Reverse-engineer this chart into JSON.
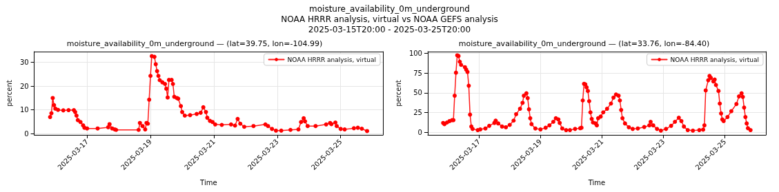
{
  "chart_data": [
    {
      "type": "line",
      "title": "moisture_availability_0m_underground — (lat=39.75, lon=-104.99)",
      "xlabel": "Time",
      "ylabel": "percent",
      "annotations": [
        "moisture_availability_0m_underground",
        "NOAA HRRR analysis, virtual vs NOAA GEFS analysis",
        "2025-03-15T20:00 - 2025-03-25T20:00"
      ],
      "x": [
        "2025-03-15T20:00",
        "2025-03-15T21:00",
        "2025-03-15T22:00",
        "2025-03-15T23:00",
        "2025-03-16T00:00",
        "2025-03-16T02:00",
        "2025-03-16T06:00",
        "2025-03-16T10:00",
        "2025-03-16T14:00",
        "2025-03-16T15:00",
        "2025-03-16T16:00",
        "2025-03-16T17:00",
        "2025-03-16T19:00",
        "2025-03-16T21:00",
        "2025-03-16T22:00",
        "2025-03-17T00:00",
        "2025-03-17T08:00",
        "2025-03-17T16:00",
        "2025-03-17T17:00",
        "2025-03-17T19:00",
        "2025-03-17T21:00",
        "2025-03-17T22:00",
        "2025-03-18T15:00",
        "2025-03-18T16:00",
        "2025-03-18T18:00",
        "2025-03-18T20:00",
        "2025-03-18T21:00",
        "2025-03-18T22:00",
        "2025-03-18T23:00",
        "2025-03-19T00:00",
        "2025-03-19T01:00",
        "2025-03-19T03:00",
        "2025-03-19T04:00",
        "2025-03-19T05:00",
        "2025-03-19T06:00",
        "2025-03-19T07:00",
        "2025-03-19T09:00",
        "2025-03-19T11:00",
        "2025-03-19T12:00",
        "2025-03-19T13:00",
        "2025-03-19T14:00",
        "2025-03-19T16:00",
        "2025-03-19T17:00",
        "2025-03-19T18:00",
        "2025-03-19T20:00",
        "2025-03-19T21:00",
        "2025-03-19T23:00",
        "2025-03-20T00:00",
        "2025-03-20T02:00",
        "2025-03-20T06:00",
        "2025-03-20T11:00",
        "2025-03-20T14:00",
        "2025-03-20T16:00",
        "2025-03-20T18:00",
        "2025-03-20T19:00",
        "2025-03-20T21:00",
        "2025-03-20T23:00",
        "2025-03-21T01:00",
        "2025-03-21T06:00",
        "2025-03-21T13:00",
        "2025-03-21T16:00",
        "2025-03-21T18:00",
        "2025-03-21T20:00",
        "2025-03-21T23:00",
        "2025-03-22T06:00",
        "2025-03-22T15:00",
        "2025-03-22T17:00",
        "2025-03-22T20:00",
        "2025-03-22T23:00",
        "2025-03-23T03:00",
        "2025-03-23T10:00",
        "2025-03-23T16:00",
        "2025-03-23T18:00",
        "2025-03-23T20:00",
        "2025-03-23T21:00",
        "2025-03-23T23:00",
        "2025-03-24T05:00",
        "2025-03-24T13:00",
        "2025-03-24T16:00",
        "2025-03-24T17:00",
        "2025-03-24T20:00",
        "2025-03-24T21:00",
        "2025-03-25T00:00",
        "2025-03-25T03:00",
        "2025-03-25T10:00",
        "2025-03-25T13:00",
        "2025-03-25T16:00",
        "2025-03-25T20:00"
      ],
      "series": [
        {
          "name": "NOAA HRRR analysis, virtual",
          "color": "#ff0000",
          "values": [
            7.0,
            8.6,
            15.0,
            12.0,
            10.5,
            10.0,
            9.8,
            9.9,
            9.9,
            9.1,
            7.6,
            5.7,
            4.9,
            3.5,
            2.5,
            2.2,
            2.2,
            2.7,
            4.0,
            2.2,
            1.8,
            1.6,
            1.6,
            4.5,
            3.2,
            1.8,
            4.5,
            4.2,
            14.3,
            24.3,
            32.6,
            32.3,
            29.2,
            26.3,
            24.3,
            22.5,
            21.6,
            20.9,
            18.9,
            15.2,
            22.6,
            22.6,
            20.9,
            15.5,
            15.0,
            14.7,
            11.6,
            9.1,
            7.6,
            7.8,
            8.3,
            8.8,
            11.1,
            9.1,
            6.7,
            5.4,
            4.9,
            3.9,
            3.7,
            3.9,
            3.4,
            6.2,
            4.2,
            2.9,
            3.2,
            3.9,
            3.2,
            2.0,
            1.3,
            1.3,
            1.6,
            1.8,
            4.9,
            6.5,
            5.2,
            3.2,
            3.2,
            3.9,
            4.5,
            4.0,
            4.7,
            3.2,
            2.0,
            1.8,
            2.3,
            2.5,
            2.1,
            1.1
          ]
        }
      ],
      "xlim": [
        "2025-03-15T08:00",
        "2025-03-26T08:00"
      ],
      "ylim": [
        -0.5,
        34.5
      ],
      "xticks": [
        "2025-03-17",
        "2025-03-19",
        "2025-03-21",
        "2025-03-23",
        "2025-03-25"
      ],
      "yticks": [
        0,
        10,
        20,
        30
      ],
      "grid": true,
      "legend": "top right",
      "marker": "circle"
    },
    {
      "type": "line",
      "title": "moisture_availability_0m_underground — (lat=33.76, lon=-84.40)",
      "xlabel": "Time",
      "ylabel": "percent",
      "x": [
        "2025-03-15T20:00",
        "2025-03-15T21:00",
        "2025-03-15T23:00",
        "2025-03-16T01:00",
        "2025-03-16T03:00",
        "2025-03-16T04:00",
        "2025-03-16T05:00",
        "2025-03-16T06:00",
        "2025-03-16T07:00",
        "2025-03-16T08:00",
        "2025-03-16T09:00",
        "2025-03-16T10:00",
        "2025-03-16T13:00",
        "2025-03-16T14:00",
        "2025-03-16T15:00",
        "2025-03-16T16:00",
        "2025-03-16T17:00",
        "2025-03-16T18:00",
        "2025-03-16T19:00",
        "2025-03-16T23:00",
        "2025-03-17T01:00",
        "2025-03-17T05:00",
        "2025-03-17T08:00",
        "2025-03-17T12:00",
        "2025-03-17T13:00",
        "2025-03-17T15:00",
        "2025-03-17T18:00",
        "2025-03-17T21:00",
        "2025-03-18T00:00",
        "2025-03-18T03:00",
        "2025-03-18T05:00",
        "2025-03-18T08:00",
        "2025-03-18T10:00",
        "2025-03-18T11:00",
        "2025-03-18T13:00",
        "2025-03-18T14:00",
        "2025-03-18T15:00",
        "2025-03-18T16:00",
        "2025-03-18T17:00",
        "2025-03-18T20:00",
        "2025-03-19T00:00",
        "2025-03-19T04:00",
        "2025-03-19T07:00",
        "2025-03-19T10:00",
        "2025-03-19T12:00",
        "2025-03-19T14:00",
        "2025-03-19T15:00",
        "2025-03-19T17:00",
        "2025-03-19T20:00",
        "2025-03-19T23:00",
        "2025-03-20T03:00",
        "2025-03-20T07:00",
        "2025-03-20T08:00",
        "2025-03-20T09:00",
        "2025-03-20T10:00",
        "2025-03-20T11:00",
        "2025-03-20T12:00",
        "2025-03-20T13:00",
        "2025-03-20T14:00",
        "2025-03-20T15:00",
        "2025-03-20T16:00",
        "2025-03-20T17:00",
        "2025-03-20T19:00",
        "2025-03-20T20:00",
        "2025-03-20T21:00",
        "2025-03-20T23:00",
        "2025-03-21T01:00",
        "2025-03-21T04:00",
        "2025-03-21T07:00",
        "2025-03-21T09:00",
        "2025-03-21T11:00",
        "2025-03-21T13:00",
        "2025-03-21T14:00",
        "2025-03-21T15:00",
        "2025-03-21T16:00",
        "2025-03-21T18:00",
        "2025-03-21T21:00",
        "2025-03-22T00:00",
        "2025-03-22T04:00",
        "2025-03-22T09:00",
        "2025-03-22T13:00",
        "2025-03-22T14:00",
        "2025-03-22T16:00",
        "2025-03-22T19:00",
        "2025-03-22T22:00",
        "2025-03-23T02:00",
        "2025-03-23T06:00",
        "2025-03-23T09:00",
        "2025-03-23T12:00",
        "2025-03-23T14:00",
        "2025-03-23T16:00",
        "2025-03-23T19:00",
        "2025-03-23T23:00",
        "2025-03-24T04:00",
        "2025-03-24T07:00",
        "2025-03-24T08:00",
        "2025-03-24T09:00",
        "2025-03-24T11:00",
        "2025-03-24T12:00",
        "2025-03-24T13:00",
        "2025-03-24T15:00",
        "2025-03-24T16:00",
        "2025-03-24T17:00",
        "2025-03-24T19:00",
        "2025-03-24T20:00",
        "2025-03-24T21:00",
        "2025-03-24T22:00",
        "2025-03-24T23:00",
        "2025-03-25T02:00",
        "2025-03-25T05:00",
        "2025-03-25T09:00",
        "2025-03-25T11:00",
        "2025-03-25T13:00",
        "2025-03-25T14:00",
        "2025-03-25T15:00",
        "2025-03-25T16:00",
        "2025-03-25T17:00",
        "2025-03-25T18:00",
        "2025-03-25T20:00"
      ],
      "series": [
        {
          "name": "NOAA HRRR analysis, virtual",
          "color": "#ff0000",
          "values": [
            12.0,
            10.5,
            12.6,
            14.4,
            15.6,
            15.6,
            46.4,
            75.4,
            97.3,
            96.4,
            89.2,
            85.3,
            82.3,
            79.3,
            76.3,
            59.0,
            22.5,
            7.5,
            4.5,
            3.0,
            3.9,
            5.1,
            8.4,
            12.0,
            15.0,
            11.4,
            7.5,
            6.6,
            9.6,
            15.0,
            23.1,
            29.9,
            37.4,
            46.4,
            49.4,
            43.4,
            29.3,
            18.0,
            10.5,
            5.1,
            3.9,
            6.0,
            9.0,
            13.5,
            18.0,
            16.5,
            12.0,
            5.1,
            3.0,
            3.0,
            4.5,
            5.4,
            6.0,
            40.4,
            61.4,
            60.8,
            56.9,
            52.4,
            39.5,
            25.4,
            17.1,
            12.6,
            11.4,
            9.0,
            18.0,
            20.1,
            25.4,
            29.9,
            36.5,
            44.0,
            47.9,
            46.4,
            40.4,
            28.4,
            18.0,
            11.4,
            6.6,
            4.5,
            5.1,
            6.9,
            9.0,
            13.5,
            9.0,
            4.5,
            2.4,
            4.5,
            8.4,
            13.5,
            18.6,
            14.4,
            7.5,
            3.0,
            2.4,
            3.0,
            3.6,
            9.0,
            53.0,
            65.9,
            71.3,
            68.9,
            64.4,
            66.8,
            59.9,
            52.4,
            36.5,
            24.0,
            16.5,
            14.4,
            19.5,
            26.9,
            35.9,
            45.5,
            49.4,
            44.9,
            31.4,
            19.5,
            11.4,
            5.4,
            3.0
          ]
        }
      ],
      "xlim": [
        "2025-03-15T08:00",
        "2025-03-26T08:00"
      ],
      "ylim": [
        -3,
        102
      ],
      "xticks": [
        "2025-03-17",
        "2025-03-19",
        "2025-03-21",
        "2025-03-23",
        "2025-03-25"
      ],
      "yticks": [
        0,
        25,
        50,
        75,
        100
      ],
      "grid": true,
      "legend": "top right",
      "marker": "circle"
    }
  ]
}
